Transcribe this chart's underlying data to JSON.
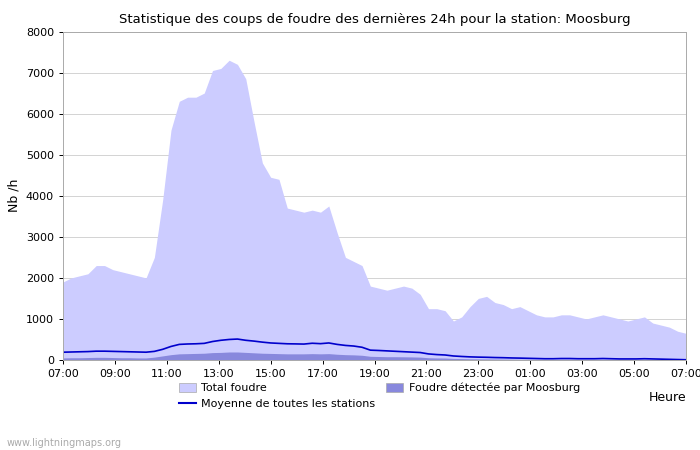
{
  "title": "Statistique des coups de foudre des dernières 24h pour la station: Moosburg",
  "xlabel": "Heure",
  "ylabel": "Nb /h",
  "watermark": "www.lightningmaps.org",
  "ylim": [
    0,
    8000
  ],
  "yticks": [
    0,
    1000,
    2000,
    3000,
    4000,
    5000,
    6000,
    7000,
    8000
  ],
  "xtick_labels": [
    "07:00",
    "09:00",
    "11:00",
    "13:00",
    "15:00",
    "17:00",
    "19:00",
    "21:00",
    "23:00",
    "01:00",
    "03:00",
    "05:00",
    "07:00"
  ],
  "color_total": "#ccccff",
  "color_local": "#8888dd",
  "color_mean_line": "#0000cc",
  "color_bg": "#ffffff",
  "color_grid": "#cccccc",
  "legend_items": [
    "Total foudre",
    "Moyenne de toutes les stations",
    "Foudre détectée par Moosburg"
  ],
  "total_foudre": [
    1900,
    2000,
    2050,
    2100,
    2300,
    2300,
    2200,
    2150,
    2100,
    2050,
    2000,
    2500,
    3900,
    5600,
    6300,
    6400,
    6400,
    6500,
    7050,
    7100,
    7300,
    7200,
    6850,
    5800,
    4800,
    4450,
    4400,
    3700,
    3650,
    3600,
    3650,
    3600,
    3750,
    3100,
    2500,
    2400,
    2300,
    1800,
    1750,
    1700,
    1750,
    1800,
    1750,
    1600,
    1250,
    1250,
    1200,
    950,
    1050,
    1300,
    1500,
    1550,
    1400,
    1350,
    1250,
    1300,
    1200,
    1100,
    1050,
    1050,
    1100,
    1100,
    1050,
    1000,
    1050,
    1100,
    1050,
    1000,
    950,
    1000,
    1050,
    900,
    850,
    800,
    700,
    650
  ],
  "local_foudre": [
    50,
    55,
    55,
    60,
    65,
    65,
    60,
    55,
    55,
    50,
    50,
    70,
    100,
    130,
    150,
    155,
    160,
    165,
    180,
    185,
    195,
    195,
    185,
    175,
    165,
    160,
    155,
    150,
    150,
    150,
    155,
    150,
    155,
    140,
    130,
    125,
    115,
    90,
    85,
    80,
    80,
    78,
    75,
    70,
    55,
    50,
    48,
    38,
    35,
    30,
    28,
    26,
    24,
    22,
    20,
    18,
    16,
    14,
    12,
    12,
    14,
    14,
    12,
    12,
    12,
    14,
    12,
    10,
    10,
    10,
    12,
    10,
    8,
    7,
    5,
    3
  ],
  "mean_line": [
    190,
    195,
    200,
    205,
    215,
    215,
    210,
    205,
    200,
    195,
    190,
    210,
    260,
    330,
    380,
    390,
    395,
    405,
    450,
    480,
    500,
    510,
    480,
    460,
    435,
    415,
    405,
    395,
    392,
    388,
    408,
    398,
    415,
    380,
    355,
    340,
    310,
    240,
    232,
    222,
    212,
    202,
    192,
    182,
    148,
    132,
    122,
    98,
    86,
    76,
    70,
    66,
    60,
    56,
    50,
    46,
    41,
    36,
    31,
    31,
    36,
    36,
    31,
    31,
    31,
    36,
    31,
    26,
    26,
    26,
    31,
    26,
    21,
    16,
    11,
    6
  ]
}
